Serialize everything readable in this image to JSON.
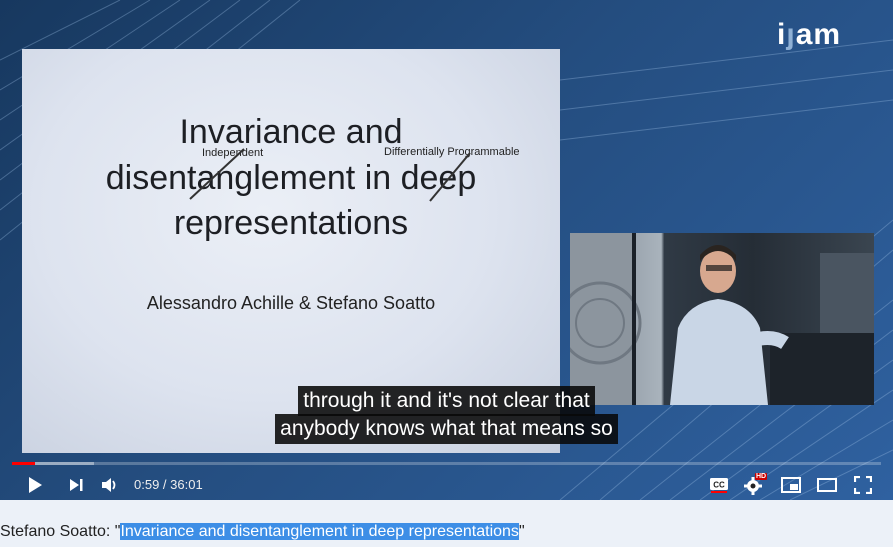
{
  "logo": {
    "text_left": "i",
    "text_mid": "ȷ",
    "text_right": "am"
  },
  "slide": {
    "title_line1": "Invariance and",
    "title_line2": "disentanglement in deep",
    "title_line3": "representations",
    "note_independent": "Independent",
    "note_differentiable": "Differentially Programmable",
    "authors": "Alessandro Achille & Stefano Soatto"
  },
  "captions": {
    "line1": "through it and it's not clear that",
    "line2": "anybody knows what that means so"
  },
  "player": {
    "current_time": "0:59",
    "separator": " / ",
    "duration": "36:01",
    "progress_fraction": 0.027,
    "hd_badge": "HD"
  },
  "description": {
    "prefix": "Stefano Soatto: \"",
    "highlighted": "Invariance and disentanglement in deep representations",
    "suffix": "\""
  },
  "colors": {
    "progress": "#ff0000",
    "highlight": "#3d8ee6"
  }
}
